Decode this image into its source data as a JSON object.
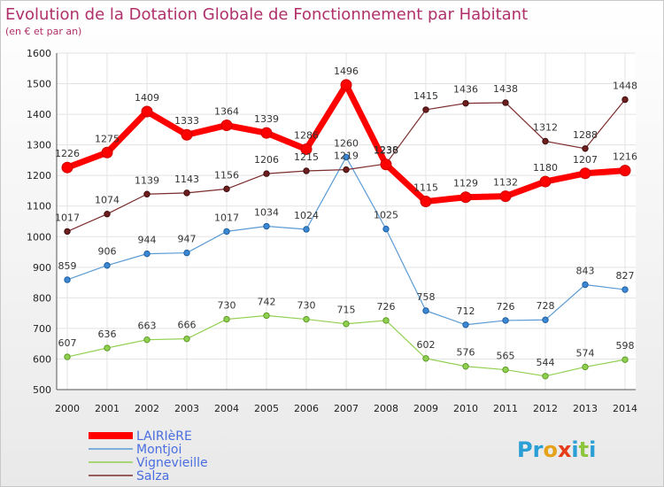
{
  "chart_data": {
    "type": "line",
    "title": "Evolution de la Dotation Globale de Fonctionnement par Habitant",
    "subtitle": "(en € et par an)",
    "xlabel": "",
    "ylabel": "",
    "x": [
      2000,
      2001,
      2002,
      2003,
      2004,
      2005,
      2006,
      2007,
      2008,
      2009,
      2010,
      2011,
      2012,
      2013,
      2014
    ],
    "ylim": [
      500,
      1600
    ],
    "yticks": [
      500,
      600,
      700,
      800,
      900,
      1000,
      1100,
      1200,
      1300,
      1400,
      1500,
      1600
    ],
    "grid": true,
    "legend_position": "bottom-left",
    "series": [
      {
        "name": "LAIRIèRE",
        "color": "#ff0000",
        "values": [
          1226,
          1275,
          1409,
          1333,
          1364,
          1339,
          1286,
          1496,
          1236,
          1115,
          1129,
          1132,
          1180,
          1207,
          1216
        ]
      },
      {
        "name": "Montjoi",
        "color": "#5b9bd5",
        "values": [
          859,
          906,
          944,
          947,
          1017,
          1034,
          1024,
          1260,
          1025,
          758,
          712,
          726,
          728,
          843,
          827
        ]
      },
      {
        "name": "Vignevieille",
        "color": "#92d050",
        "values": [
          607,
          636,
          663,
          666,
          730,
          742,
          730,
          715,
          726,
          602,
          576,
          565,
          544,
          574,
          598
        ]
      },
      {
        "name": "Salza",
        "color": "#7b2c2c",
        "values": [
          1017,
          1074,
          1139,
          1143,
          1156,
          1206,
          1215,
          1219,
          1238,
          1415,
          1436,
          1438,
          1312,
          1288,
          1448
        ]
      }
    ]
  },
  "logo": {
    "text": "Proxiti"
  }
}
